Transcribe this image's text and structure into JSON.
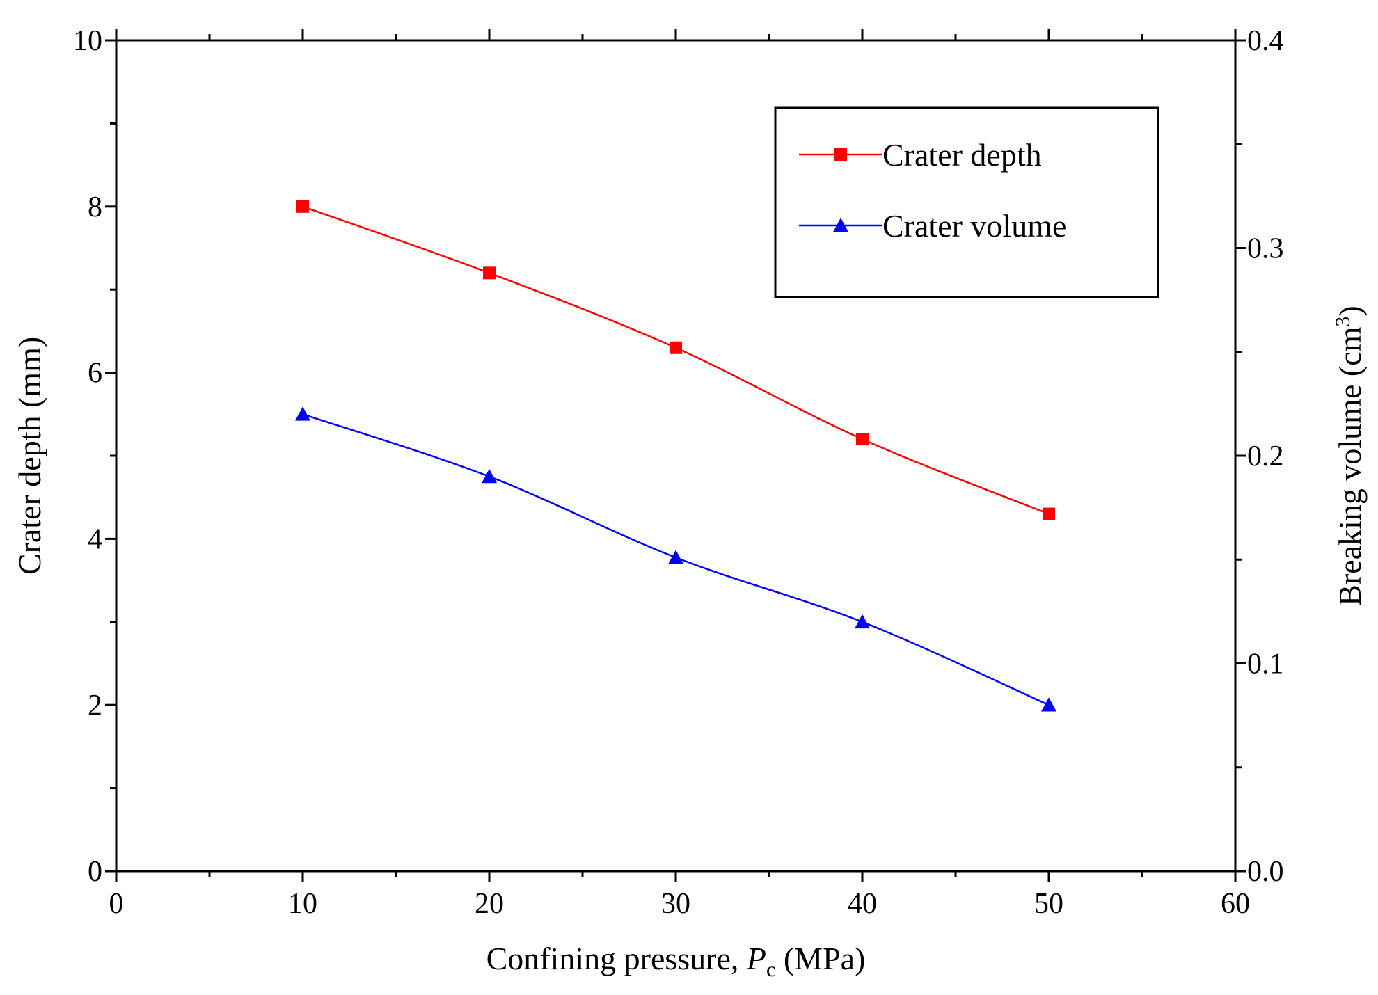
{
  "chart_data": {
    "type": "line",
    "title": "",
    "xlabel": {
      "prefix": "Confining pressure, ",
      "var": "P",
      "sub": "c",
      "suffix": " (MPa)"
    },
    "ylabel": "Crater depth  (mm)",
    "y2label": {
      "main": "Breaking volume (cm",
      "sup": "3",
      "end": ")"
    },
    "xlim": [
      0,
      60
    ],
    "ylim": [
      0,
      10
    ],
    "y2lim": [
      0.0,
      0.4
    ],
    "xticks": [
      "0",
      "10",
      "20",
      "30",
      "40",
      "50",
      "60"
    ],
    "yticks": [
      "0",
      "2",
      "4",
      "6",
      "8",
      "10"
    ],
    "y2ticks": [
      "0.0",
      "0.1",
      "0.2",
      "0.3",
      "0.4"
    ],
    "x": [
      10,
      20,
      30,
      40,
      50
    ],
    "series": [
      {
        "name": "Crater depth",
        "axis": "left",
        "marker": "square",
        "color": "#ff0000",
        "values": [
          8.0,
          7.2,
          6.3,
          5.2,
          4.3
        ]
      },
      {
        "name": "Crater volume",
        "axis": "right",
        "marker": "triangle",
        "color": "#0000ff",
        "values": [
          0.22,
          0.19,
          0.151,
          0.12,
          0.08
        ]
      }
    ],
    "legend_position": "top-right",
    "grid": false
  }
}
